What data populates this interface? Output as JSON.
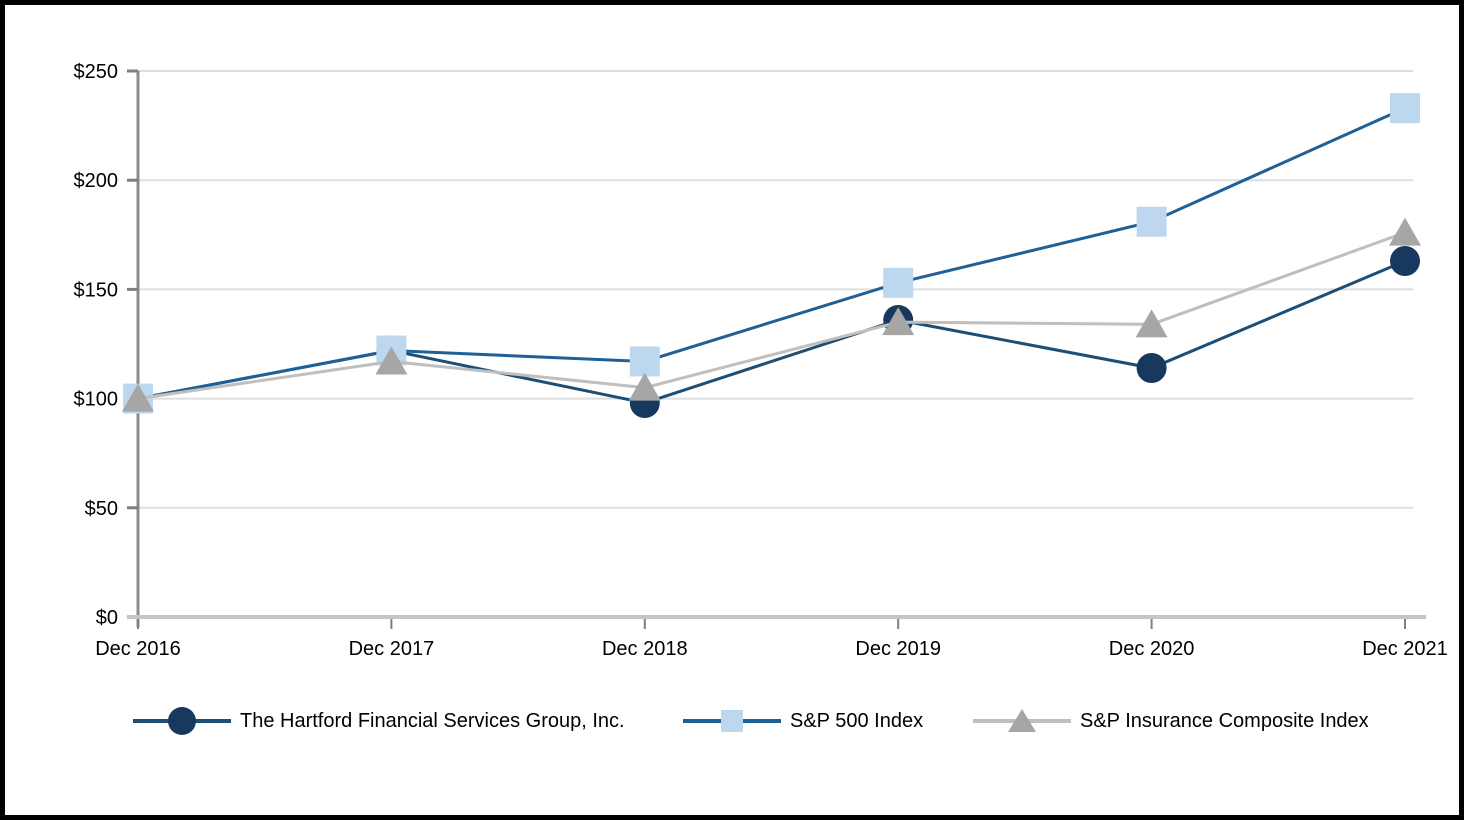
{
  "chart_data": {
    "type": "line",
    "title": "",
    "categories": [
      "Dec 2016",
      "Dec 2017",
      "Dec 2018",
      "Dec 2019",
      "Dec 2020",
      "Dec 2021"
    ],
    "series": [
      {
        "name": "The Hartford Financial Services Group, Inc.",
        "marker": "circle",
        "line_color": "#1D4F76",
        "marker_color": "#17395E",
        "values": [
          100,
          122,
          98,
          136,
          114,
          163
        ]
      },
      {
        "name": "S&P 500 Index",
        "marker": "square",
        "line_color": "#1F6096",
        "marker_color": "#BDD7EE",
        "values": [
          100,
          122,
          117,
          153,
          181,
          233
        ]
      },
      {
        "name": "S&P Insurance Composite Index",
        "marker": "triangle",
        "line_color": "#BFBFBF",
        "marker_color": "#A6A6A6",
        "values": [
          100,
          117,
          105,
          135,
          134,
          176
        ]
      }
    ],
    "xlabel": "",
    "ylabel": "",
    "ylim": [
      0,
      250
    ],
    "ytick_step": 50,
    "ytick_labels": [
      "$0",
      "$50",
      "$100",
      "$150",
      "$200",
      "$250"
    ],
    "grid": "horizontal-only",
    "gridline_color": "#DEDEDE",
    "axis_color": "#8C8C8C",
    "xaxis_line_color": "#C2C6C9",
    "tick_color": "#7F7F7F",
    "text_color": "#000000",
    "legend_position": "bottom"
  }
}
